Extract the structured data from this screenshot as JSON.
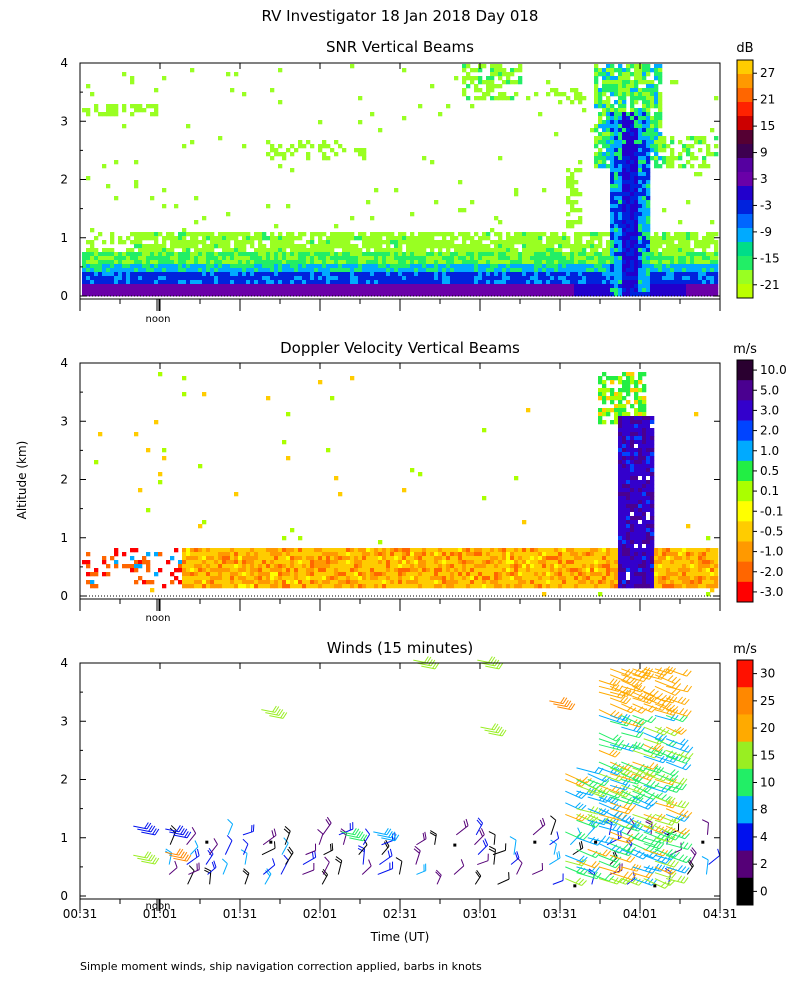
{
  "figure_title": "RV Investigator  18 Jan 2018 Day 018",
  "y_axis_label": "Altitude (km)",
  "x_axis_label": "Time (UT)",
  "noon_label": "noon",
  "footer": "Simple moment winds, ship navigation correction applied, barbs in knots",
  "chart_data": [
    {
      "type": "heatmap",
      "title": "SNR Vertical Beams",
      "ylabel": "Altitude (km)",
      "y_ticks": [
        "0",
        "1",
        "2",
        "3",
        "4"
      ],
      "ylim": [
        0,
        4
      ],
      "colorbar_unit": "dB",
      "colorbar_labels": [
        "27",
        "21",
        "15",
        "9",
        "3",
        "-3",
        "-9",
        "-15",
        "-21"
      ],
      "colorbar_colors": [
        "#ffcc00",
        "#ff9900",
        "#ff2200",
        "#3d0050",
        "#6a00a8",
        "#0022dd",
        "#00aaff",
        "#22ee66",
        "#bbff00"
      ],
      "colorbar_full": [
        "#ffcc00",
        "#ff9900",
        "#ff6600",
        "#ff2200",
        "#cc0000",
        "#550033",
        "#3d0050",
        "#5500a0",
        "#6a00a8",
        "#2200cc",
        "#0022dd",
        "#0066ff",
        "#00aaff",
        "#00dd88",
        "#22ee66",
        "#99ff22",
        "#bbff00"
      ],
      "low_layer_top_km": 1.15,
      "storm_column_hours": [
        3.75,
        4.05
      ]
    },
    {
      "type": "heatmap",
      "title": "Doppler Velocity Vertical Beams",
      "ylabel": "Altitude (km)",
      "y_ticks": [
        "0",
        "1",
        "2",
        "3",
        "4"
      ],
      "ylim": [
        0,
        4
      ],
      "colorbar_unit": "m/s",
      "colorbar_labels": [
        "10.0",
        "5.0",
        "3.0",
        "2.0",
        "1.0",
        "0.5",
        "0.1",
        "-0.1",
        "-0.5",
        "-1.0",
        "-2.0",
        "-3.0"
      ],
      "colorbar_colors": [
        "#2a0030",
        "#4a0090",
        "#3300cc",
        "#0044ff",
        "#00aaff",
        "#22ee44",
        "#aaff00",
        "#ffff00",
        "#ffcc00",
        "#ff9900",
        "#ff6600",
        "#ff0000"
      ],
      "low_layer_top_km": 0.85,
      "storm_column_hours": [
        3.87,
        4.1
      ]
    },
    {
      "type": "scatter",
      "title": "Winds (15 minutes)",
      "ylabel": "Altitude (km)",
      "y_ticks": [
        "0",
        "1",
        "2",
        "3",
        "4"
      ],
      "ylim": [
        0,
        4
      ],
      "colorbar_unit": "m/s",
      "colorbar_labels": [
        "30",
        "25",
        "20",
        "15",
        "10",
        "8",
        "4",
        "2",
        "0"
      ],
      "colorbar_colors": [
        "#ff1100",
        "#ff8800",
        "#ffaa00",
        "#99ee22",
        "#22ee66",
        "#00aaff",
        "#0011ee",
        "#550077",
        "#000000"
      ],
      "x_ticks": [
        "00:31",
        "01:01",
        "01:31",
        "02:01",
        "02:31",
        "03:01",
        "03:31",
        "04:01",
        "04:31"
      ]
    }
  ]
}
